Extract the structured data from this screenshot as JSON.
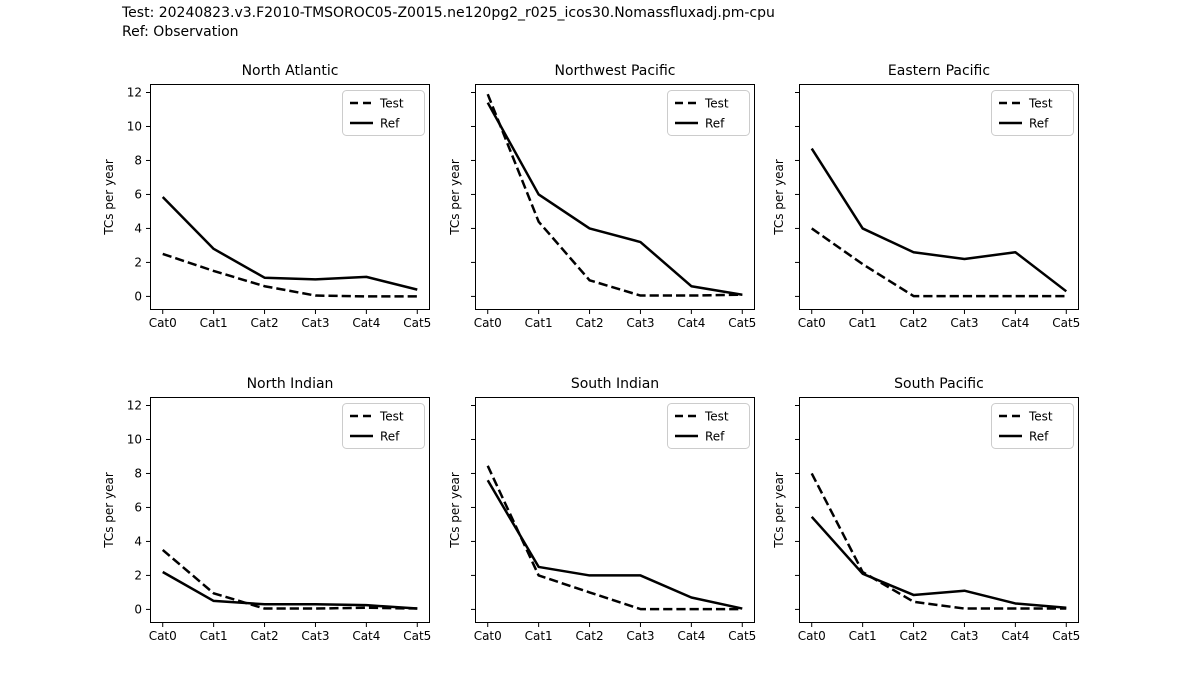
{
  "figure": {
    "suptitle_line1": "Test: 20240823.v3.F2010-TMSOROC05-Z0015.ne120pg2_r025_icos30.Nomassfluxadj.pm-cpu",
    "suptitle_line2": "Ref: Observation",
    "background": "#ffffff",
    "line_color": "#000000",
    "legend_border": "#cccccc",
    "xlim": [
      -0.25,
      5.25
    ]
  },
  "legend": {
    "test_label": "Test",
    "ref_label": "Ref",
    "position": "upper right"
  },
  "chart_data": [
    {
      "type": "line",
      "slug": "north-atlantic",
      "title": "North Atlantic",
      "ylabel": "TCs per year",
      "categories": [
        "Cat0",
        "Cat1",
        "Cat2",
        "Cat3",
        "Cat4",
        "Cat5"
      ],
      "yticks": [
        0,
        2,
        4,
        6,
        8,
        10,
        12
      ],
      "ylim": [
        -0.8,
        12.5
      ],
      "grid": false,
      "legend_position": "upper right",
      "show_ytick_labels": true,
      "series": [
        {
          "name": "Test",
          "style": "dashed",
          "values": [
            2.5,
            1.5,
            0.6,
            0.05,
            0.0,
            0.0
          ]
        },
        {
          "name": "Ref",
          "style": "solid",
          "values": [
            5.85,
            2.8,
            1.1,
            1.0,
            1.15,
            0.4
          ]
        }
      ]
    },
    {
      "type": "line",
      "slug": "northwest-pacific",
      "title": "Northwest Pacific",
      "ylabel": "TCs per year",
      "categories": [
        "Cat0",
        "Cat1",
        "Cat2",
        "Cat3",
        "Cat4",
        "Cat5"
      ],
      "yticks": [
        0,
        2,
        4,
        6,
        8,
        10,
        12
      ],
      "ylim": [
        -0.8,
        12.5
      ],
      "grid": false,
      "legend_position": "upper right",
      "show_ytick_labels": false,
      "series": [
        {
          "name": "Test",
          "style": "dashed",
          "values": [
            11.9,
            4.4,
            0.95,
            0.05,
            0.05,
            0.1
          ]
        },
        {
          "name": "Ref",
          "style": "solid",
          "values": [
            11.4,
            6.0,
            4.0,
            3.2,
            0.6,
            0.1
          ]
        }
      ]
    },
    {
      "type": "line",
      "slug": "eastern-pacific",
      "title": "Eastern Pacific",
      "ylabel": "TCs per year",
      "categories": [
        "Cat0",
        "Cat1",
        "Cat2",
        "Cat3",
        "Cat4",
        "Cat5"
      ],
      "yticks": [
        0,
        2,
        4,
        6,
        8,
        10,
        12
      ],
      "ylim": [
        -0.8,
        12.5
      ],
      "grid": false,
      "legend_position": "upper right",
      "show_ytick_labels": false,
      "series": [
        {
          "name": "Test",
          "style": "dashed",
          "values": [
            4.0,
            1.9,
            0.02,
            0.02,
            0.02,
            0.02
          ]
        },
        {
          "name": "Ref",
          "style": "solid",
          "values": [
            8.7,
            4.0,
            2.6,
            2.2,
            2.6,
            0.3
          ]
        }
      ]
    },
    {
      "type": "line",
      "slug": "north-indian",
      "title": "North Indian",
      "ylabel": "TCs per year",
      "categories": [
        "Cat0",
        "Cat1",
        "Cat2",
        "Cat3",
        "Cat4",
        "Cat5"
      ],
      "yticks": [
        0,
        2,
        4,
        6,
        8,
        10,
        12
      ],
      "ylim": [
        -0.8,
        12.5
      ],
      "grid": false,
      "legend_position": "upper right",
      "show_ytick_labels": true,
      "series": [
        {
          "name": "Test",
          "style": "dashed",
          "values": [
            3.5,
            0.95,
            0.05,
            0.05,
            0.1,
            0.05
          ]
        },
        {
          "name": "Ref",
          "style": "solid",
          "values": [
            2.2,
            0.5,
            0.3,
            0.3,
            0.25,
            0.05
          ]
        }
      ]
    },
    {
      "type": "line",
      "slug": "south-indian",
      "title": "South Indian",
      "ylabel": "TCs per year",
      "categories": [
        "Cat0",
        "Cat1",
        "Cat2",
        "Cat3",
        "Cat4",
        "Cat5"
      ],
      "yticks": [
        0,
        2,
        4,
        6,
        8,
        10,
        12
      ],
      "ylim": [
        -0.8,
        12.5
      ],
      "grid": false,
      "legend_position": "upper right",
      "show_ytick_labels": false,
      "series": [
        {
          "name": "Test",
          "style": "dashed",
          "values": [
            8.45,
            2.0,
            1.0,
            0.02,
            0.02,
            0.02
          ]
        },
        {
          "name": "Ref",
          "style": "solid",
          "values": [
            7.6,
            2.5,
            2.0,
            2.0,
            0.7,
            0.05
          ]
        }
      ]
    },
    {
      "type": "line",
      "slug": "south-pacific",
      "title": "South Pacific",
      "ylabel": "TCs per year",
      "categories": [
        "Cat0",
        "Cat1",
        "Cat2",
        "Cat3",
        "Cat4",
        "Cat5"
      ],
      "yticks": [
        0,
        2,
        4,
        6,
        8,
        10,
        12
      ],
      "ylim": [
        -0.8,
        12.5
      ],
      "grid": false,
      "legend_position": "upper right",
      "show_ytick_labels": false,
      "series": [
        {
          "name": "Test",
          "style": "dashed",
          "values": [
            8.0,
            2.2,
            0.45,
            0.05,
            0.05,
            0.05
          ]
        },
        {
          "name": "Ref",
          "style": "solid",
          "values": [
            5.45,
            2.1,
            0.85,
            1.1,
            0.35,
            0.1
          ]
        }
      ]
    }
  ]
}
